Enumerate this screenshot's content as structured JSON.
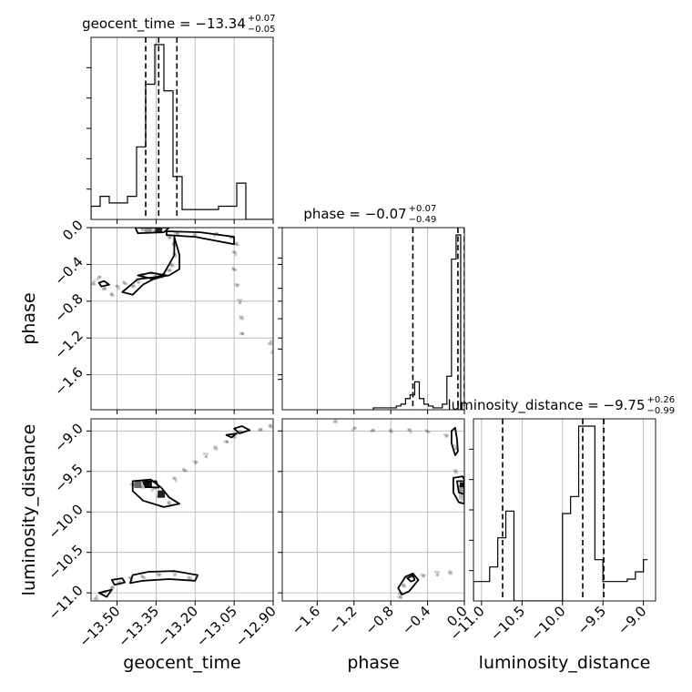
{
  "chart_data": {
    "type": "corner",
    "parameters": [
      {
        "name": "geocent_time",
        "title": "geocent_time = −13.34",
        "title_plus": "+0.07",
        "title_minus": "−0.05",
        "range": [
          -13.6,
          -12.9
        ],
        "ticks": [
          -13.5,
          -13.35,
          -13.2,
          -13.05,
          -12.9
        ],
        "tick_labels": [
          "−13.50",
          "−13.35",
          "−13.20",
          "−13.05",
          "−12.90"
        ],
        "quantiles": [
          -13.39,
          -13.34,
          -13.27
        ],
        "hist_edges": [
          -13.6,
          -13.565,
          -13.53,
          -13.495,
          -13.46,
          -13.425,
          -13.39,
          -13.355,
          -13.32,
          -13.285,
          -13.25,
          -13.215,
          -13.18,
          -13.145,
          -13.11,
          -13.075,
          -13.04,
          -13.005,
          -12.97,
          -12.935,
          -12.9
        ],
        "hist_counts": [
          4,
          7,
          5,
          5,
          7,
          22,
          41,
          53,
          39,
          13,
          3,
          3,
          3,
          3,
          4,
          4,
          11,
          0,
          0,
          0
        ]
      },
      {
        "name": "phase",
        "title": "phase = −0.07",
        "title_plus": "+0.07",
        "title_minus": "−0.49",
        "range": [
          -1.98,
          0.0
        ],
        "ticks": [
          -1.6,
          -1.2,
          -0.8,
          -0.4,
          0.0
        ],
        "tick_labels": [
          "−1.6",
          "−1.2",
          "−0.8",
          "−0.4",
          "0.0"
        ],
        "quantiles": [
          -0.56,
          -0.07,
          0.0
        ],
        "hist_edges": [
          -0.99,
          -0.94,
          -0.89,
          -0.84,
          -0.79,
          -0.74,
          -0.69,
          -0.64,
          -0.59,
          -0.54,
          -0.49,
          -0.44,
          -0.39,
          -0.34,
          -0.29,
          -0.24,
          -0.19,
          -0.14,
          -0.09,
          -0.04,
          0.0
        ],
        "hist_counts": [
          1,
          1,
          1,
          1,
          1,
          2,
          3,
          6,
          8,
          15,
          6,
          3,
          2,
          1,
          1,
          3,
          18,
          81,
          94,
          0
        ]
      },
      {
        "name": "luminosity_distance",
        "title": "luminosity_distance = −9.75",
        "title_plus": "+0.26",
        "title_minus": "−0.99",
        "range": [
          -11.1,
          -8.85
        ],
        "ticks": [
          -11.0,
          -10.5,
          -10.0,
          -9.5,
          -9.0
        ],
        "tick_labels": [
          "−11.0",
          "−10.5",
          "−10.0",
          "−9.5",
          "−9.0"
        ],
        "quantiles": [
          -10.74,
          -9.75,
          -9.49
        ],
        "hist_edges": [
          -11.1,
          -11.0,
          -10.9,
          -10.8,
          -10.7,
          -10.6,
          -10.5,
          -10.4,
          -10.3,
          -10.2,
          -10.1,
          -10.0,
          -9.9,
          -9.8,
          -9.7,
          -9.6,
          -9.5,
          -9.4,
          -9.3,
          -9.2,
          -9.1,
          -9.0,
          -8.95
        ],
        "hist_counts": [
          8,
          8,
          14,
          26,
          37,
          0,
          0,
          0,
          0,
          0,
          0,
          36,
          43,
          72,
          72,
          17,
          8,
          8,
          8,
          9,
          12,
          17
        ]
      }
    ],
    "scatter_pairs": [
      {
        "x": "geocent_time",
        "y": "phase",
        "points": [
          [
            -13.59,
            -0.6
          ],
          [
            -13.57,
            -0.55
          ],
          [
            -13.55,
            -0.66
          ],
          [
            -13.52,
            -0.72
          ],
          [
            -13.5,
            -0.65
          ],
          [
            -13.47,
            -0.6
          ],
          [
            -13.44,
            -0.63
          ],
          [
            -13.42,
            -0.58
          ],
          [
            -13.4,
            -0.52
          ],
          [
            -13.37,
            -0.49
          ],
          [
            -13.35,
            -0.51
          ],
          [
            -13.32,
            -0.53
          ],
          [
            -13.3,
            -0.46
          ],
          [
            -13.29,
            -0.4
          ],
          [
            -13.28,
            -0.3
          ],
          [
            -13.28,
            -0.18
          ],
          [
            -13.3,
            -0.1
          ],
          [
            -13.36,
            -0.03
          ],
          [
            -13.4,
            -0.02
          ],
          [
            -13.27,
            -0.06
          ],
          [
            -13.2,
            -0.07
          ],
          [
            -13.12,
            -0.08
          ],
          [
            -13.06,
            -0.1
          ],
          [
            -13.04,
            -0.17
          ],
          [
            -13.05,
            -0.28
          ],
          [
            -13.05,
            -0.45
          ],
          [
            -13.04,
            -0.62
          ],
          [
            -13.03,
            -0.8
          ],
          [
            -13.02,
            -0.98
          ],
          [
            -13.02,
            -1.15
          ],
          [
            -12.91,
            -1.25
          ],
          [
            -12.9,
            -1.35
          ]
        ]
      },
      {
        "x": "geocent_time",
        "y": "luminosity_distance",
        "points": [
          [
            -13.58,
            -11.06
          ],
          [
            -13.55,
            -11.0
          ],
          [
            -13.52,
            -10.93
          ],
          [
            -13.49,
            -10.87
          ],
          [
            -13.45,
            -10.83
          ],
          [
            -13.4,
            -10.8
          ],
          [
            -13.34,
            -10.77
          ],
          [
            -13.28,
            -10.76
          ],
          [
            -13.22,
            -10.82
          ],
          [
            -13.44,
            -9.66
          ],
          [
            -13.4,
            -9.68
          ],
          [
            -13.36,
            -9.72
          ],
          [
            -13.34,
            -9.8
          ],
          [
            -13.3,
            -9.88
          ],
          [
            -13.28,
            -9.6
          ],
          [
            -13.24,
            -9.48
          ],
          [
            -13.2,
            -9.38
          ],
          [
            -13.16,
            -9.3
          ],
          [
            -13.12,
            -9.21
          ],
          [
            -13.08,
            -9.13
          ],
          [
            -13.05,
            -9.06
          ],
          [
            -13.03,
            -9.02
          ],
          [
            -12.95,
            -8.98
          ],
          [
            -12.91,
            -8.93
          ]
        ]
      },
      {
        "x": "phase",
        "y": "luminosity_distance",
        "points": [
          [
            -1.4,
            -8.87
          ],
          [
            -1.2,
            -8.98
          ],
          [
            -1.0,
            -8.99
          ],
          [
            -0.8,
            -8.99
          ],
          [
            -0.6,
            -9.0
          ],
          [
            -0.4,
            -9.0
          ],
          [
            -0.2,
            -9.05
          ],
          [
            -0.1,
            -9.2
          ],
          [
            -0.09,
            -9.5
          ],
          [
            -0.05,
            -9.68
          ],
          [
            -0.02,
            -9.7
          ],
          [
            -0.01,
            -9.85
          ],
          [
            -0.7,
            -11.0
          ],
          [
            -0.66,
            -10.9
          ],
          [
            -0.62,
            -10.82
          ],
          [
            -0.56,
            -10.8
          ],
          [
            -0.45,
            -10.78
          ],
          [
            -0.3,
            -10.76
          ],
          [
            -0.15,
            -10.75
          ],
          [
            -0.7,
            -11.05
          ]
        ]
      }
    ],
    "contours": [
      {
        "x": "geocent_time",
        "y": "phase",
        "loops": [
          [
            [
              -13.43,
              0.0
            ],
            [
              -13.3,
              0.0
            ],
            [
              -13.32,
              -0.05
            ],
            [
              -13.42,
              -0.06
            ]
          ],
          [
            [
              -13.31,
              -0.04
            ],
            [
              -13.18,
              -0.05
            ],
            [
              -13.05,
              -0.1
            ],
            [
              -13.05,
              -0.18
            ],
            [
              -13.2,
              -0.1
            ],
            [
              -13.31,
              -0.08
            ]
          ],
          [
            [
              -13.28,
              -0.1
            ],
            [
              -13.26,
              -0.3
            ],
            [
              -13.26,
              -0.45
            ],
            [
              -13.3,
              -0.52
            ],
            [
              -13.42,
              -0.56
            ],
            [
              -13.48,
              -0.7
            ],
            [
              -13.44,
              -0.73
            ],
            [
              -13.4,
              -0.62
            ],
            [
              -13.32,
              -0.5
            ],
            [
              -13.28,
              -0.3
            ]
          ],
          [
            [
              -13.42,
              -0.52
            ],
            [
              -13.37,
              -0.49
            ],
            [
              -13.31,
              -0.52
            ],
            [
              -13.36,
              -0.56
            ]
          ],
          [
            [
              -13.57,
              -0.6
            ],
            [
              -13.55,
              -0.58
            ],
            [
              -13.53,
              -0.62
            ],
            [
              -13.56,
              -0.64
            ]
          ]
        ],
        "cells": [
          [
            -13.34,
            -0.02,
            "#222222"
          ],
          [
            -13.38,
            -0.02,
            "#999999"
          ]
        ]
      },
      {
        "x": "geocent_time",
        "y": "luminosity_distance",
        "loops": [
          [
            [
              -13.05,
              -8.97
            ],
            [
              -13.02,
              -8.94
            ],
            [
              -12.99,
              -8.99
            ],
            [
              -13.03,
              -9.03
            ]
          ],
          [
            [
              -13.08,
              -9.05
            ],
            [
              -13.04,
              -9.03
            ],
            [
              -13.06,
              -9.08
            ]
          ],
          [
            [
              -13.44,
              -9.62
            ],
            [
              -13.37,
              -9.6
            ],
            [
              -13.33,
              -9.7
            ],
            [
              -13.3,
              -9.82
            ],
            [
              -13.26,
              -9.9
            ],
            [
              -13.32,
              -9.94
            ],
            [
              -13.4,
              -9.86
            ],
            [
              -13.44,
              -9.74
            ]
          ],
          [
            [
              -13.4,
              -9.63
            ],
            [
              -13.35,
              -9.62
            ],
            [
              -13.34,
              -9.7
            ],
            [
              -13.39,
              -9.69
            ]
          ],
          [
            [
              -13.44,
              -10.78
            ],
            [
              -13.38,
              -10.74
            ],
            [
              -13.28,
              -10.73
            ],
            [
              -13.19,
              -10.78
            ],
            [
              -13.2,
              -10.85
            ],
            [
              -13.3,
              -10.83
            ],
            [
              -13.4,
              -10.85
            ],
            [
              -13.45,
              -10.88
            ]
          ],
          [
            [
              -13.52,
              -10.84
            ],
            [
              -13.48,
              -10.82
            ],
            [
              -13.47,
              -10.87
            ],
            [
              -13.51,
              -10.9
            ]
          ],
          [
            [
              -13.57,
              -11.0
            ],
            [
              -13.52,
              -10.96
            ],
            [
              -13.54,
              -11.05
            ]
          ]
        ],
        "cells": [
          [
            -13.38,
            -9.66,
            "#111111"
          ],
          [
            -13.33,
            -9.78,
            "#222222"
          ],
          [
            -13.42,
            -9.66,
            "#666666"
          ]
        ]
      },
      {
        "x": "phase",
        "y": "luminosity_distance",
        "loops": [
          [
            [
              -0.14,
              -9.0
            ],
            [
              -0.1,
              -8.96
            ],
            [
              -0.08,
              -9.1
            ],
            [
              -0.07,
              -9.25
            ],
            [
              -0.1,
              -9.3
            ],
            [
              -0.14,
              -9.15
            ]
          ],
          [
            [
              -0.12,
              -9.58
            ],
            [
              -0.02,
              -9.56
            ],
            [
              0.0,
              -9.6
            ],
            [
              0.0,
              -9.9
            ],
            [
              -0.06,
              -9.88
            ],
            [
              -0.12,
              -9.76
            ]
          ],
          [
            [
              -0.08,
              -9.62
            ],
            [
              0.0,
              -9.62
            ],
            [
              0.0,
              -9.78
            ],
            [
              -0.06,
              -9.76
            ]
          ],
          [
            [
              -0.72,
              -10.94
            ],
            [
              -0.64,
              -10.8
            ],
            [
              -0.56,
              -10.76
            ],
            [
              -0.5,
              -10.84
            ],
            [
              -0.6,
              -10.98
            ],
            [
              -0.68,
              -11.02
            ]
          ],
          [
            [
              -0.62,
              -10.82
            ],
            [
              -0.56,
              -10.78
            ],
            [
              -0.54,
              -10.84
            ],
            [
              -0.58,
              -10.86
            ]
          ]
        ],
        "cells": [
          [
            -0.01,
            -9.68,
            "#111111"
          ],
          [
            -0.02,
            -9.74,
            "#999999"
          ],
          [
            -0.02,
            -9.8,
            "#bbbbbb"
          ]
        ]
      }
    ],
    "grid": true,
    "colors": {
      "line": "#000000",
      "grid": "#b0b0b0",
      "points": "#555555"
    }
  }
}
